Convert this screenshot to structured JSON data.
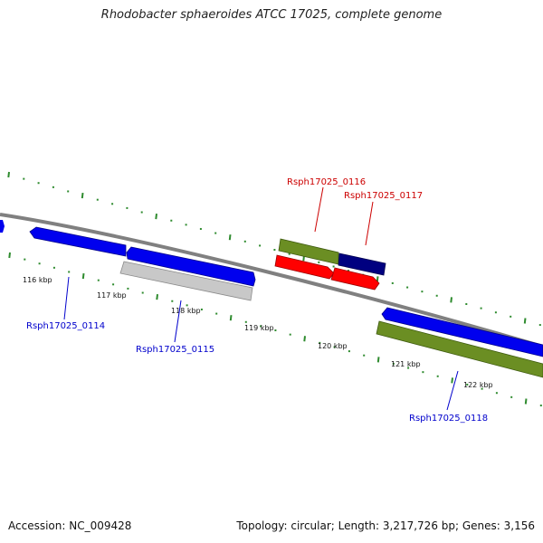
{
  "title": "Rhodobacter sphaeroides ATCC 17025, complete genome",
  "footer": {
    "accession": "Accession: NC_009428",
    "summary": "Topology: circular; Length: 3,217,726 bp; Genes: 3,156"
  },
  "colors": {
    "backbone": "#808080",
    "tick": "#2e8b2e",
    "blue_gene": "#0000ee",
    "gray_gene": "#c8c8c8",
    "olive_gene": "#6b8e23",
    "red_gene": "#ff0000",
    "navy_gene": "#000080",
    "label_blue": "#0000cc",
    "label_red": "#cc0000"
  },
  "kbp_labels": [
    "116 kbp",
    "117 kbp",
    "118 kbp",
    "119 kbp",
    "120 kbp",
    "121 kbp",
    "122 kbp"
  ],
  "genes": [
    {
      "label": "Rsph17025_0114",
      "color": "blue_gene",
      "label_color": "label_blue"
    },
    {
      "label": "Rsph17025_0115",
      "color": "gray_gene",
      "label_color": "label_blue"
    },
    {
      "label": "Rsph17025_0116",
      "color": "olive_gene",
      "label_color": "label_red"
    },
    {
      "label": "Rsph17025_0117",
      "color": "navy_gene",
      "label_color": "label_red"
    },
    {
      "label": "Rsph17025_0118",
      "color": "olive_gene",
      "label_color": "label_blue"
    }
  ]
}
